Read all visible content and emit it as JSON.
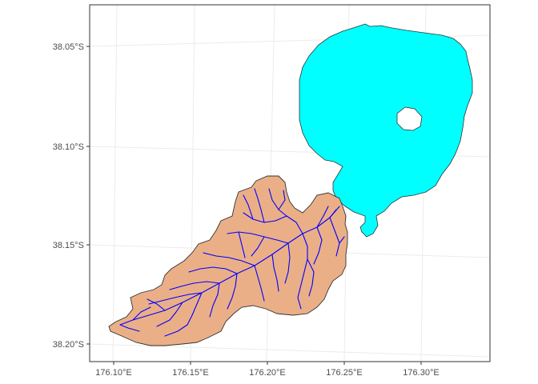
{
  "map": {
    "y_ticks": [
      {
        "value": -38.05,
        "label": "38.05°S"
      },
      {
        "value": -38.1,
        "label": "38.10°S"
      },
      {
        "value": -38.15,
        "label": "38.15°S"
      },
      {
        "value": -38.2,
        "label": "38.20°S"
      }
    ],
    "x_ticks": [
      {
        "value": 176.1,
        "label": "176.10°E"
      },
      {
        "value": 176.15,
        "label": "176.15°E"
      },
      {
        "value": 176.2,
        "label": "176.20°E"
      },
      {
        "value": 176.25,
        "label": "176.25°E"
      },
      {
        "value": 176.3,
        "label": "176.30°E"
      }
    ],
    "colors": {
      "lake_fill": "#00ffff",
      "catchment_fill": "#ebaf87",
      "river_stroke": "#0000ff",
      "outline": "#333333",
      "panel_border": "#333333",
      "graticule": "#ebebeb"
    },
    "layers": [
      "lake",
      "lake-island",
      "catchment",
      "river-network"
    ]
  }
}
